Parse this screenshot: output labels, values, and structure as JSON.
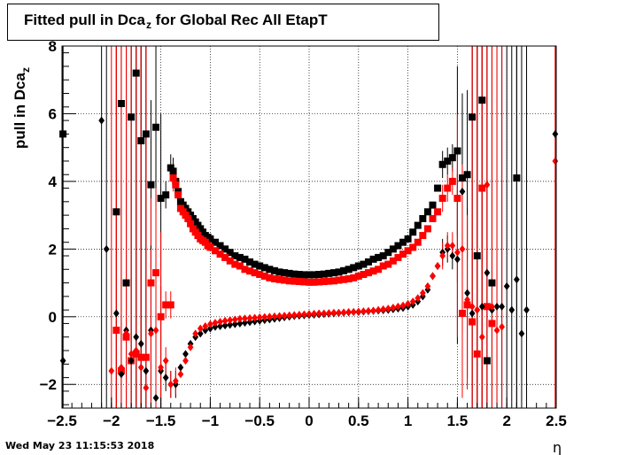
{
  "title": {
    "text": "Fitted pull in Dca",
    "sub": "z",
    "rest": " for Global Rec All EtapT"
  },
  "footer": "Wed May 23 11:15:53 2018",
  "chart_data": {
    "type": "scatter",
    "title": "Fitted pull in Dca_z for Global Rec All EtapT",
    "xlabel": "η",
    "ylabel": "pull in Dca_z",
    "xlim": [
      -2.5,
      2.5
    ],
    "ylim": [
      -2.7,
      8
    ],
    "grid": true,
    "x_ticks": [
      -2.5,
      -2,
      -1.5,
      -1,
      -0.5,
      0,
      0.5,
      1,
      1.5,
      2,
      2.5
    ],
    "x_tick_labels": [
      "−2.5",
      "−2",
      "−1.5",
      "−1",
      "−0.5",
      "0",
      "0.5",
      "1",
      "1.5",
      "2",
      "2.5"
    ],
    "y_ticks": [
      -2,
      0,
      2,
      4,
      6,
      8
    ],
    "y_tick_labels": [
      "−2",
      "0",
      "2",
      "4",
      "6",
      "8"
    ],
    "colors": {
      "black": "#000000",
      "red": "#ff0000"
    },
    "series": [
      {
        "marker": "square",
        "color": "#000000",
        "x": [
          -2.49,
          -1.95,
          -1.9,
          -1.85,
          -1.8,
          -1.75,
          -1.7,
          -1.65,
          -1.6,
          -1.55,
          -1.5,
          -1.45,
          -1.4,
          -1.375,
          -1.35,
          -1.325,
          -1.3,
          -1.275,
          -1.25,
          -1.225,
          -1.2,
          -1.175,
          -1.15,
          -1.125,
          -1.1,
          -1.075,
          -1.05,
          -1.025,
          -1.0,
          -0.95,
          -0.9,
          -0.85,
          -0.8,
          -0.75,
          -0.7,
          -0.65,
          -0.6,
          -0.55,
          -0.5,
          -0.45,
          -0.4,
          -0.35,
          -0.3,
          -0.25,
          -0.2,
          -0.15,
          -0.1,
          -0.05,
          0.0,
          0.05,
          0.1,
          0.15,
          0.2,
          0.25,
          0.3,
          0.35,
          0.4,
          0.45,
          0.5,
          0.55,
          0.6,
          0.65,
          0.7,
          0.75,
          0.8,
          0.85,
          0.9,
          0.95,
          1.0,
          1.05,
          1.1,
          1.15,
          1.2,
          1.25,
          1.3,
          1.35,
          1.4,
          1.45,
          1.5,
          1.55,
          1.6,
          1.65,
          1.7,
          1.75,
          1.8,
          1.85,
          2.1
        ],
        "y": [
          5.4,
          3.1,
          6.3,
          1.0,
          5.9,
          7.2,
          5.2,
          5.4,
          3.9,
          5.6,
          3.5,
          3.6,
          4.4,
          4.3,
          4.0,
          3.7,
          3.4,
          3.3,
          3.2,
          3.1,
          3.0,
          2.9,
          2.8,
          2.7,
          2.6,
          2.5,
          2.4,
          2.35,
          2.3,
          2.2,
          2.1,
          2.0,
          1.9,
          1.8,
          1.75,
          1.7,
          1.62,
          1.55,
          1.5,
          1.45,
          1.4,
          1.36,
          1.32,
          1.3,
          1.28,
          1.26,
          1.25,
          1.24,
          1.24,
          1.24,
          1.25,
          1.26,
          1.28,
          1.3,
          1.32,
          1.36,
          1.4,
          1.45,
          1.5,
          1.55,
          1.62,
          1.7,
          1.75,
          1.8,
          1.9,
          2.0,
          2.1,
          2.2,
          2.3,
          2.5,
          2.7,
          2.9,
          3.1,
          3.3,
          3.8,
          4.5,
          4.6,
          4.7,
          4.9,
          4.1,
          4.2,
          5.9,
          1.8,
          6.4,
          -1.3,
          1.0,
          4.1
        ]
      },
      {
        "marker": "square",
        "color": "#ff0000",
        "x": [
          -1.95,
          -1.9,
          -1.85,
          -1.8,
          -1.75,
          -1.7,
          -1.65,
          -1.6,
          -1.55,
          -1.5,
          -1.45,
          -1.4,
          -1.375,
          -1.35,
          -1.325,
          -1.3,
          -1.275,
          -1.25,
          -1.225,
          -1.2,
          -1.175,
          -1.15,
          -1.125,
          -1.1,
          -1.075,
          -1.05,
          -1.025,
          -1.0,
          -0.95,
          -0.9,
          -0.85,
          -0.8,
          -0.75,
          -0.7,
          -0.65,
          -0.6,
          -0.55,
          -0.5,
          -0.45,
          -0.4,
          -0.35,
          -0.3,
          -0.25,
          -0.2,
          -0.15,
          -0.1,
          -0.05,
          0.0,
          0.05,
          0.1,
          0.15,
          0.2,
          0.25,
          0.3,
          0.35,
          0.4,
          0.45,
          0.5,
          0.55,
          0.6,
          0.65,
          0.7,
          0.75,
          0.8,
          0.85,
          0.9,
          0.95,
          1.0,
          1.05,
          1.1,
          1.15,
          1.2,
          1.25,
          1.3,
          1.35,
          1.4,
          1.45,
          1.5,
          1.55,
          1.6,
          1.65,
          1.7,
          1.75,
          1.8,
          1.85
        ],
        "y": [
          -0.4,
          -1.6,
          -0.6,
          -1.3,
          -1.1,
          -1.2,
          -1.2,
          1.0,
          1.3,
          0.0,
          0.35,
          0.35,
          4.1,
          3.9,
          3.6,
          3.2,
          3.1,
          3.0,
          2.9,
          2.75,
          2.6,
          2.5,
          2.4,
          2.3,
          2.25,
          2.2,
          2.1,
          2.05,
          1.95,
          1.85,
          1.75,
          1.65,
          1.55,
          1.5,
          1.4,
          1.35,
          1.3,
          1.25,
          1.2,
          1.15,
          1.12,
          1.1,
          1.08,
          1.06,
          1.05,
          1.04,
          1.03,
          1.02,
          1.02,
          1.03,
          1.04,
          1.05,
          1.06,
          1.08,
          1.1,
          1.12,
          1.15,
          1.2,
          1.25,
          1.3,
          1.35,
          1.4,
          1.5,
          1.55,
          1.65,
          1.75,
          1.85,
          1.95,
          2.05,
          2.2,
          2.4,
          2.6,
          2.9,
          3.1,
          3.5,
          3.8,
          4.0,
          3.5,
          0.1,
          0.35,
          -0.15,
          -1.1,
          3.8,
          0.3,
          -0.2
        ]
      },
      {
        "marker": "diamond",
        "color": "#000000",
        "x": [
          -2.49,
          -2.1,
          -2.05,
          -1.95,
          -1.9,
          -1.85,
          -1.8,
          -1.75,
          -1.7,
          -1.65,
          -1.6,
          -1.55,
          -1.5,
          -1.45,
          -1.4,
          -1.35,
          -1.3,
          -1.25,
          -1.2,
          -1.15,
          -1.1,
          -1.05,
          -1.0,
          -0.95,
          -0.9,
          -0.85,
          -0.8,
          -0.75,
          -0.7,
          -0.65,
          -0.6,
          -0.55,
          -0.5,
          -0.45,
          -0.4,
          -0.35,
          -0.3,
          -0.25,
          -0.2,
          -0.15,
          -0.1,
          -0.05,
          0.0,
          0.05,
          0.1,
          0.15,
          0.2,
          0.25,
          0.3,
          0.35,
          0.4,
          0.45,
          0.5,
          0.55,
          0.6,
          0.65,
          0.7,
          0.75,
          0.8,
          0.85,
          0.9,
          0.95,
          1.0,
          1.05,
          1.1,
          1.15,
          1.2,
          1.25,
          1.3,
          1.35,
          1.4,
          1.45,
          1.5,
          1.55,
          1.6,
          1.65,
          1.7,
          1.75,
          1.8,
          1.85,
          1.9,
          1.95,
          2.0,
          2.05,
          2.1,
          2.15,
          2.2,
          2.49
        ],
        "y": [
          -1.3,
          5.8,
          2.0,
          0.1,
          -1.7,
          -0.4,
          -1.3,
          -0.6,
          -0.8,
          -1.6,
          -0.4,
          -2.4,
          -1.6,
          -1.8,
          -2.0,
          -2.0,
          -1.5,
          -1.1,
          -0.8,
          -0.6,
          -0.5,
          -0.4,
          -0.35,
          -0.3,
          -0.28,
          -0.26,
          -0.24,
          -0.22,
          -0.2,
          -0.18,
          -0.16,
          -0.14,
          -0.12,
          -0.1,
          -0.08,
          -0.06,
          -0.04,
          -0.02,
          0.0,
          0.02,
          0.03,
          0.04,
          0.05,
          0.06,
          0.07,
          0.08,
          0.09,
          0.1,
          0.11,
          0.12,
          0.13,
          0.14,
          0.14,
          0.15,
          0.16,
          0.17,
          0.18,
          0.19,
          0.2,
          0.22,
          0.24,
          0.26,
          0.3,
          0.35,
          0.45,
          0.6,
          0.8,
          1.2,
          1.5,
          1.9,
          2.0,
          1.8,
          1.7,
          3.7,
          0.7,
          0.1,
          0.2,
          0.3,
          1.3,
          0.2,
          0.3,
          0.3,
          0.9,
          0.2,
          1.1,
          -0.5,
          0.2,
          5.4
        ]
      },
      {
        "marker": "diamond",
        "color": "#ff0000",
        "x": [
          -2.0,
          -1.95,
          -1.9,
          -1.85,
          -1.8,
          -1.75,
          -1.7,
          -1.65,
          -1.6,
          -1.55,
          -1.5,
          -1.45,
          -1.4,
          -1.35,
          -1.3,
          -1.25,
          -1.2,
          -1.15,
          -1.1,
          -1.05,
          -1.0,
          -0.95,
          -0.9,
          -0.85,
          -0.8,
          -0.75,
          -0.7,
          -0.65,
          -0.6,
          -0.55,
          -0.5,
          -0.45,
          -0.4,
          -0.35,
          -0.3,
          -0.25,
          -0.2,
          -0.15,
          -0.1,
          -0.05,
          0.0,
          0.05,
          0.1,
          0.15,
          0.2,
          0.25,
          0.3,
          0.35,
          0.4,
          0.45,
          0.5,
          0.55,
          0.6,
          0.65,
          0.7,
          0.75,
          0.8,
          0.85,
          0.9,
          0.95,
          1.0,
          1.05,
          1.1,
          1.15,
          1.2,
          1.25,
          1.3,
          1.35,
          1.4,
          1.45,
          1.5,
          1.55,
          1.6,
          1.65,
          1.7,
          1.75,
          1.8,
          1.85,
          1.9,
          1.95,
          2.49
        ],
        "y": [
          -1.6,
          -0.4,
          -1.5,
          -0.5,
          -1.1,
          -1.0,
          -1.5,
          -2.1,
          -0.5,
          -0.4,
          -1.5,
          -1.3,
          -2.0,
          -1.9,
          -1.7,
          -1.3,
          -0.9,
          -0.5,
          -0.35,
          -0.28,
          -0.22,
          -0.18,
          -0.15,
          -0.12,
          -0.1,
          -0.08,
          -0.06,
          -0.05,
          -0.04,
          -0.03,
          -0.02,
          -0.01,
          0.0,
          0.01,
          0.02,
          0.03,
          0.04,
          0.05,
          0.06,
          0.07,
          0.08,
          0.09,
          0.1,
          0.1,
          0.11,
          0.12,
          0.12,
          0.13,
          0.14,
          0.14,
          0.15,
          0.16,
          0.17,
          0.18,
          0.2,
          0.22,
          0.24,
          0.27,
          0.3,
          0.33,
          0.38,
          0.45,
          0.55,
          0.7,
          0.9,
          1.2,
          1.5,
          1.8,
          2.1,
          2.1,
          1.9,
          2.0,
          0.5,
          0.3,
          0.2,
          -0.6,
          3.9,
          0.3,
          -0.4,
          -0.3,
          4.6
        ]
      }
    ]
  }
}
